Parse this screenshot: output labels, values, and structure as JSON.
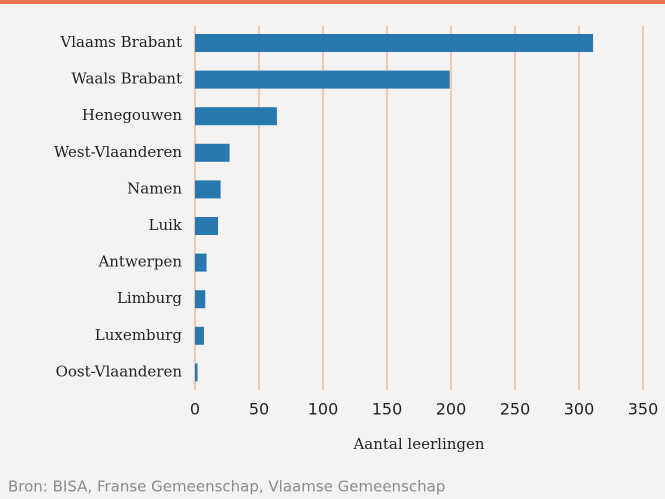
{
  "chart_data": {
    "type": "bar",
    "orientation": "horizontal",
    "categories": [
      "Vlaams Brabant",
      "Waals Brabant",
      "Henegouwen",
      "West-Vlaanderen",
      "Namen",
      "Luik",
      "Antwerpen",
      "Limburg",
      "Luxemburg",
      "Oost-Vlaanderen"
    ],
    "values": [
      311,
      199,
      64,
      27,
      20,
      18,
      9,
      8,
      7,
      2
    ],
    "color": "#2878b0",
    "xlim": [
      0,
      350
    ],
    "xticks": [
      0,
      50,
      100,
      150,
      200,
      250,
      300,
      350
    ],
    "x_label": "Aantal leerlingen",
    "grid": true,
    "grid_color": "#f2c6b6",
    "source": "Bron: BISA, Franse Gemeenschap, Vlaamse Gemeenschap"
  }
}
